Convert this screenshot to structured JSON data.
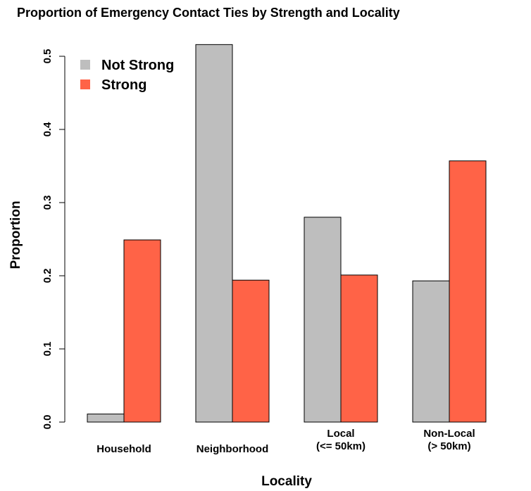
{
  "chart_data": {
    "type": "bar",
    "title": "Proportion of Emergency Contact Ties by Strength and Locality",
    "xlabel": "Locality",
    "ylabel": "Proportion",
    "categories": [
      [
        "Household"
      ],
      [
        "Neighborhood"
      ],
      [
        "Local",
        "(<= 50km)"
      ],
      [
        "Non-Local",
        "(> 50km)"
      ]
    ],
    "series": [
      {
        "name": "Not Strong",
        "color": "#bebebe",
        "values": [
          0.011,
          0.516,
          0.28,
          0.193
        ]
      },
      {
        "name": "Strong",
        "color": "#ff6347",
        "values": [
          0.249,
          0.194,
          0.201,
          0.357
        ]
      }
    ],
    "ylim": [
      0,
      0.52
    ],
    "yticks": [
      "0.0",
      "0.1",
      "0.2",
      "0.3",
      "0.4",
      "0.5"
    ],
    "grid": false,
    "legend": "top-left"
  }
}
